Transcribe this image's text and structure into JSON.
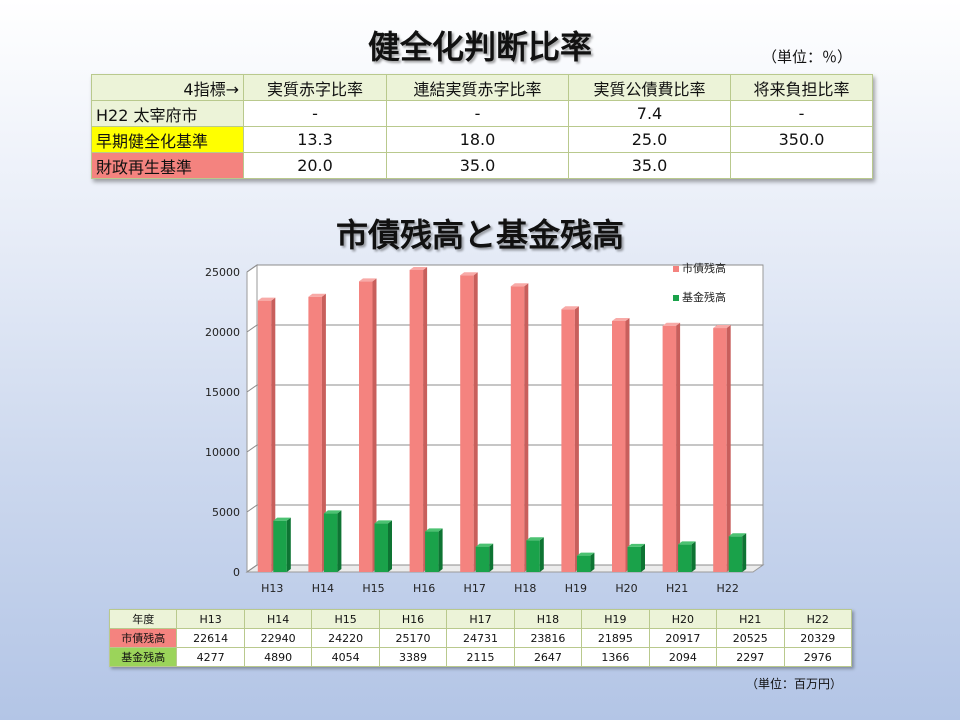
{
  "title1": "健全化判断比率",
  "unit1": "（単位：％）",
  "ratio_table": {
    "header": [
      "4指標→",
      "実質赤字比率",
      "連結実質赤字比率",
      "実質公債費比率",
      "将来負担比率"
    ],
    "rows": [
      [
        "H22 太宰府市",
        "-",
        "-",
        "7.4",
        "-"
      ],
      [
        "早期健全化基準",
        "13.3",
        "18.0",
        "25.0",
        "350.0"
      ],
      [
        "財政再生基準",
        "20.0",
        "35.0",
        "35.0",
        ""
      ]
    ],
    "row_colors": [
      "#ffffff",
      "#ffff00",
      "#f4837f"
    ]
  },
  "title2": "市債残高と基金残高",
  "chart_data": {
    "type": "bar",
    "categories": [
      "H13",
      "H14",
      "H15",
      "H16",
      "H17",
      "H18",
      "H19",
      "H20",
      "H21",
      "H22"
    ],
    "series": [
      {
        "name": "市債残高",
        "color": "#f4837f",
        "values": [
          22614,
          22940,
          24220,
          25170,
          24731,
          23816,
          21895,
          20917,
          20525,
          20329
        ]
      },
      {
        "name": "基金残高",
        "color": "#1aa24a",
        "values": [
          4277,
          4890,
          4054,
          3389,
          2115,
          2647,
          1366,
          2094,
          2297,
          2976
        ]
      }
    ],
    "ylim": [
      0,
      25000
    ],
    "yticks": [
      0,
      5000,
      10000,
      15000,
      20000,
      25000
    ],
    "grid": true,
    "legend": "top-right",
    "style": "3d-clustered-bar"
  },
  "data_table": {
    "corner": "年度",
    "row_labels": [
      "市債残高",
      "基金残高"
    ]
  },
  "unit2": "（単位：百万円）"
}
